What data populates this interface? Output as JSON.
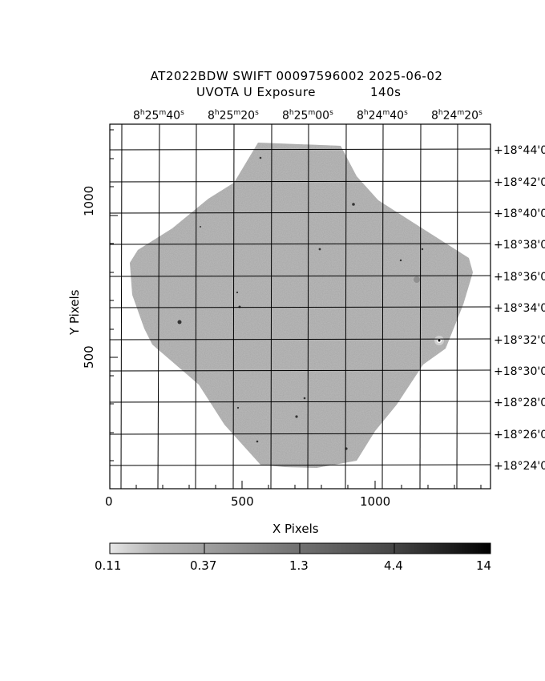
{
  "header": {
    "title": "AT2022BDW SWIFT 00097596002 2025-06-02",
    "subtitle": "UVOTA U Exposure",
    "exposure": "140s"
  },
  "axes": {
    "x_label": "X Pixels",
    "y_label": "Y Pixels",
    "x_ticks": [
      "0",
      "500",
      "1000"
    ],
    "y_ticks": [
      "500",
      "1000"
    ],
    "ra_ticks": [
      {
        "h": "8",
        "m": "25",
        "s": "40"
      },
      {
        "h": "8",
        "m": "25",
        "s": "20"
      },
      {
        "h": "8",
        "m": "25",
        "s": "00"
      },
      {
        "h": "8",
        "m": "24",
        "s": "40"
      },
      {
        "h": "8",
        "m": "24",
        "s": "20"
      }
    ],
    "dec_ticks": [
      "+18°44'0",
      "+18°42'0",
      "+18°40'0",
      "+18°38'0",
      "+18°36'0",
      "+18°34'0",
      "+18°32'0",
      "+18°30'0",
      "+18°28'0",
      "+18°26'0",
      "+18°24'0"
    ]
  },
  "colorbar": {
    "labels": [
      "0.11",
      "0.37",
      "1.3",
      "4.4",
      "14"
    ]
  }
}
